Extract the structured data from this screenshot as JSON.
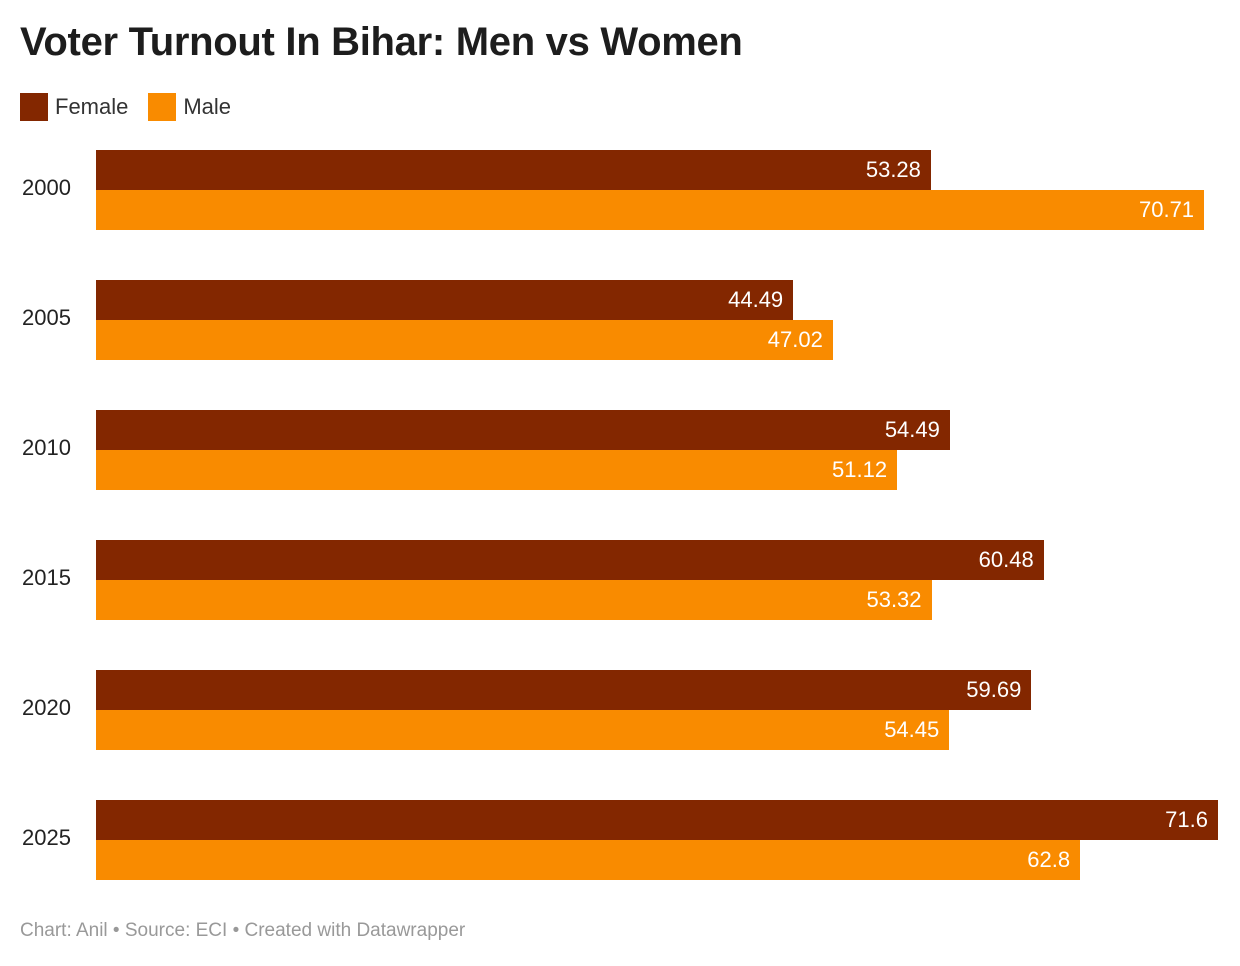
{
  "chart_data": {
    "type": "bar",
    "orientation": "horizontal",
    "title": "Voter Turnout In Bihar: Men vs Women",
    "categories": [
      "2000",
      "2005",
      "2010",
      "2015",
      "2020",
      "2025"
    ],
    "series": [
      {
        "name": "Female",
        "color": "#832700",
        "values": [
          53.28,
          44.49,
          54.49,
          60.48,
          59.69,
          71.6
        ],
        "labels": [
          "53.28",
          "44.49",
          "54.49",
          "60.48",
          "59.69",
          "71.6"
        ]
      },
      {
        "name": "Male",
        "color": "#f98b00",
        "values": [
          70.71,
          47.02,
          51.12,
          53.32,
          54.45,
          62.8
        ],
        "labels": [
          "70.71",
          "47.02",
          "51.12",
          "53.32",
          "54.45",
          "62.8"
        ]
      }
    ],
    "xlim": [
      0,
      71.6
    ],
    "legend": "top-left",
    "grid": false
  },
  "footer": "Chart: Anil • Source: ECI • Created with Datawrapper"
}
